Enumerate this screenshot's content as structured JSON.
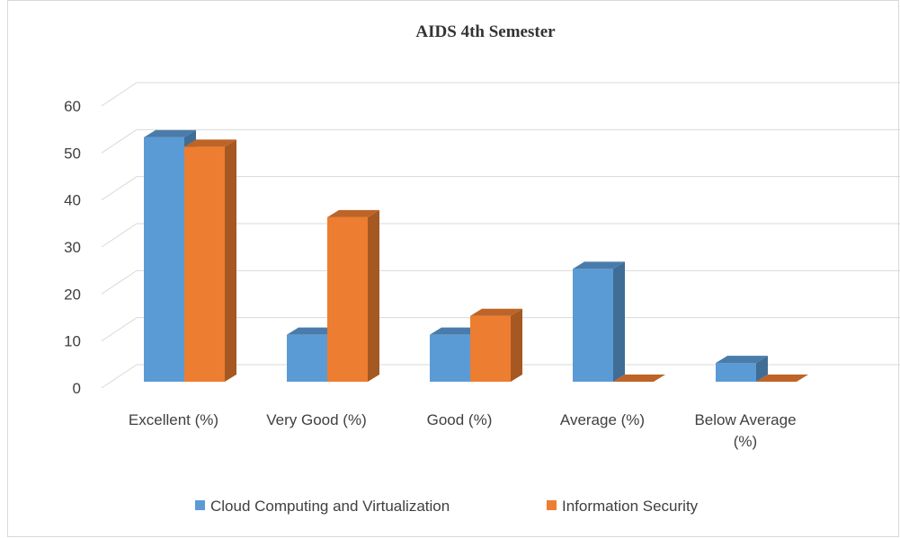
{
  "chart_data": {
    "type": "bar3d",
    "title": "AIDS 4th Semester",
    "categories": [
      "Excellent (%)",
      "Very Good (%)",
      "Good (%)",
      "Average (%)",
      "Below Average (%)"
    ],
    "series": [
      {
        "name": "Cloud Computing and Virtualization",
        "color": "#5b9bd5",
        "values": [
          52,
          10,
          10,
          24,
          4
        ]
      },
      {
        "name": "Information Security",
        "color": "#ed7d31",
        "values": [
          50,
          35,
          14,
          0,
          0
        ]
      }
    ],
    "ylim": [
      0,
      60
    ],
    "yticks": [
      0,
      10,
      20,
      30,
      40,
      50,
      60
    ],
    "grid": true,
    "legend": "bottom"
  }
}
